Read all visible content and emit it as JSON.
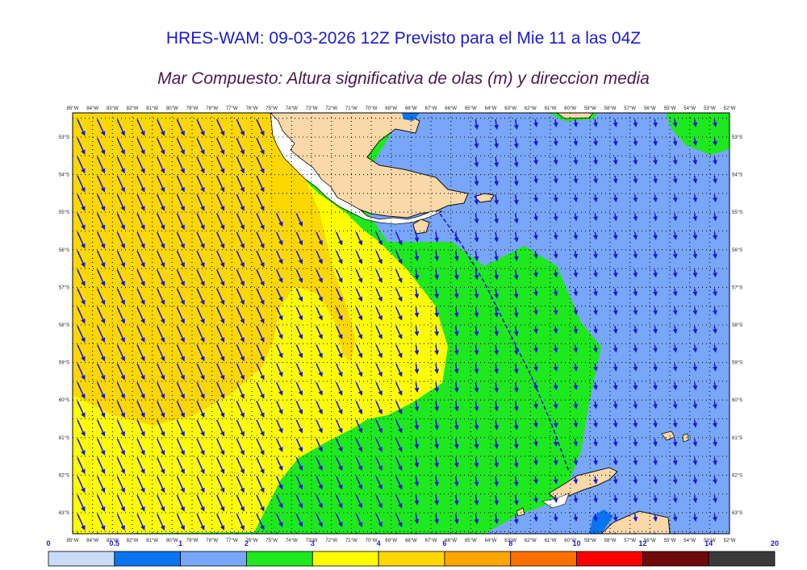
{
  "header": {
    "title": "HRES-WAM: 09-03-2026 12Z Previsto para el Mie 11 a las 04Z",
    "subtitle": "Mar Compuesto: Altura significativa de olas (m) y direccion media"
  },
  "map": {
    "lon_labels": [
      "85°W",
      "84°W",
      "83°W",
      "82°W",
      "81°W",
      "80°W",
      "79°W",
      "78°W",
      "77°W",
      "76°W",
      "75°W",
      "74°W",
      "73°W",
      "72°W",
      "71°W",
      "70°W",
      "69°W",
      "68°W",
      "67°W",
      "66°W",
      "65°W",
      "64°W",
      "63°W",
      "62°W",
      "61°W",
      "60°W",
      "59°W",
      "58°W",
      "57°W",
      "56°W",
      "55°W",
      "54°W",
      "53°W",
      "52°W"
    ],
    "lat_labels": [
      "53°S",
      "54°S",
      "55°S",
      "56°S",
      "57°S",
      "58°S",
      "59°S",
      "60°S",
      "61°S",
      "62°S",
      "63°S"
    ]
  },
  "colorbar": {
    "labels": [
      "0",
      "0.5",
      "1",
      "2",
      "3",
      "4",
      "6",
      "8",
      "10",
      "12",
      "14",
      "20"
    ],
    "colors": [
      "#c8dcf8",
      "#0a74f0",
      "#78a6f8",
      "#1ee81e",
      "#fdfd00",
      "#fdd700",
      "#fda500",
      "#fd7000",
      "#fd0000",
      "#6e0a0a",
      "#3a3a3a"
    ]
  },
  "palette": {
    "ocean_low": "#78a6f8",
    "ocean_mid": "#1ee81e",
    "ocean_3_4": "#fdfd00",
    "ocean_4_6": "#fdd700",
    "land": "#fbd8a8",
    "arrow": "#1a1ad6"
  }
}
